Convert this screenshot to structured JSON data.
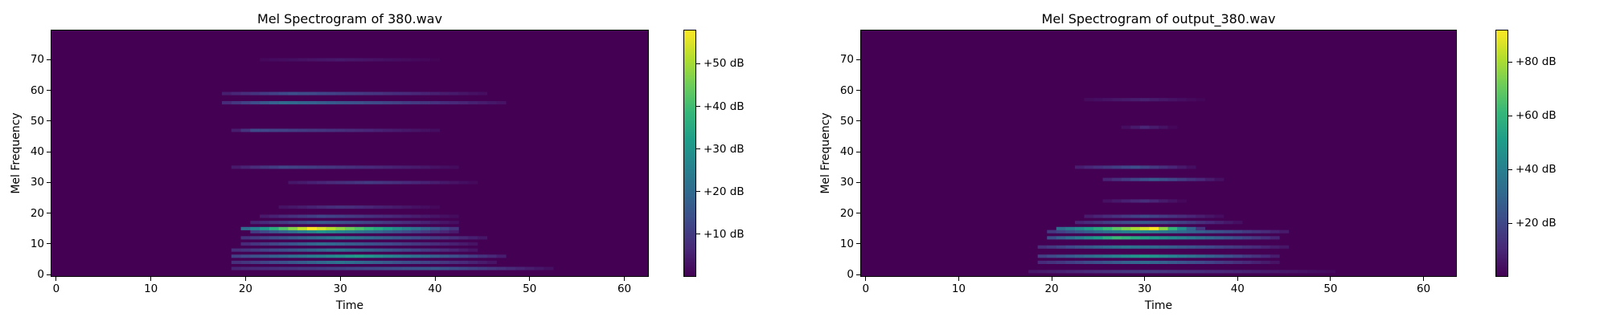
{
  "chart_data": [
    {
      "type": "heatmap",
      "title": "Mel Spectrogram of 380.wav",
      "xlabel": "Time",
      "ylabel": "Mel Frequency",
      "xlim": [
        -0.5,
        62.5
      ],
      "ylim": [
        -0.5,
        79.5
      ],
      "xticks": [
        0,
        10,
        20,
        30,
        40,
        50,
        60
      ],
      "yticks": [
        0,
        10,
        20,
        30,
        40,
        50,
        60,
        70
      ],
      "colormap": "viridis",
      "colorbar": {
        "range": [
          0,
          58
        ],
        "ticks": [
          10,
          20,
          30,
          40,
          50
        ],
        "tick_labels": [
          "+10 dB",
          "+20 dB",
          "+30 dB",
          "+40 dB",
          "+50 dB"
        ]
      },
      "bands": [
        {
          "mel": 2,
          "t_start": 19,
          "t_end": 52,
          "peak_t": 40,
          "level": 16
        },
        {
          "mel": 4,
          "t_start": 19,
          "t_end": 46,
          "peak_t": 30,
          "level": 22
        },
        {
          "mel": 6,
          "t_start": 19,
          "t_end": 47,
          "peak_t": 32,
          "level": 32
        },
        {
          "mel": 8,
          "t_start": 19,
          "t_end": 44,
          "peak_t": 30,
          "level": 22
        },
        {
          "mel": 10,
          "t_start": 20,
          "t_end": 44,
          "peak_t": 28,
          "level": 20
        },
        {
          "mel": 12,
          "t_start": 20,
          "t_end": 45,
          "peak_t": 30,
          "level": 24
        },
        {
          "mel": 14,
          "t_start": 21,
          "t_end": 42,
          "peak_t": 28,
          "level": 30
        },
        {
          "mel": 15,
          "t_start": 20,
          "t_end": 42,
          "peak_t": 27,
          "level": 58
        },
        {
          "mel": 17,
          "t_start": 21,
          "t_end": 42,
          "peak_t": 28,
          "level": 16
        },
        {
          "mel": 19,
          "t_start": 22,
          "t_end": 42,
          "peak_t": 28,
          "level": 12
        },
        {
          "mel": 22,
          "t_start": 24,
          "t_end": 40,
          "peak_t": 30,
          "level": 8
        },
        {
          "mel": 30,
          "t_start": 25,
          "t_end": 44,
          "peak_t": 33,
          "level": 10
        },
        {
          "mel": 35,
          "t_start": 19,
          "t_end": 42,
          "peak_t": 24,
          "level": 12
        },
        {
          "mel": 47,
          "t_start": 19,
          "t_end": 40,
          "peak_t": 21,
          "level": 13
        },
        {
          "mel": 56,
          "t_start": 18,
          "t_end": 47,
          "peak_t": 24,
          "level": 20
        },
        {
          "mel": 59,
          "t_start": 18,
          "t_end": 45,
          "peak_t": 25,
          "level": 14
        },
        {
          "mel": 70,
          "t_start": 22,
          "t_end": 40,
          "peak_t": 30,
          "level": 4
        }
      ]
    },
    {
      "type": "heatmap",
      "title": "Mel Spectrogram of output_380.wav",
      "xlabel": "Time",
      "ylabel": "Mel Frequency",
      "xlim": [
        -0.5,
        63.5
      ],
      "ylim": [
        -0.5,
        79.5
      ],
      "xticks": [
        0,
        10,
        20,
        30,
        40,
        50,
        60
      ],
      "yticks": [
        0,
        10,
        20,
        30,
        40,
        50,
        60,
        70
      ],
      "colormap": "viridis",
      "colorbar": {
        "range": [
          0,
          92
        ],
        "ticks": [
          20,
          40,
          60,
          80
        ],
        "tick_labels": [
          "+20 dB",
          "+40 dB",
          "+60 dB",
          "+80 dB"
        ]
      },
      "bands": [
        {
          "mel": 1,
          "t_start": 18,
          "t_end": 50,
          "peak_t": 30,
          "level": 16
        },
        {
          "mel": 4,
          "t_start": 19,
          "t_end": 44,
          "peak_t": 30,
          "level": 32
        },
        {
          "mel": 6,
          "t_start": 19,
          "t_end": 44,
          "peak_t": 30,
          "level": 50
        },
        {
          "mel": 9,
          "t_start": 19,
          "t_end": 45,
          "peak_t": 28,
          "level": 36
        },
        {
          "mel": 12,
          "t_start": 20,
          "t_end": 44,
          "peak_t": 27,
          "level": 62
        },
        {
          "mel": 14,
          "t_start": 20,
          "t_end": 45,
          "peak_t": 29,
          "level": 44
        },
        {
          "mel": 15,
          "t_start": 21,
          "t_end": 36,
          "peak_t": 31,
          "level": 92
        },
        {
          "mel": 17,
          "t_start": 23,
          "t_end": 40,
          "peak_t": 30,
          "level": 26
        },
        {
          "mel": 19,
          "t_start": 24,
          "t_end": 38,
          "peak_t": 30,
          "level": 20
        },
        {
          "mel": 24,
          "t_start": 26,
          "t_end": 34,
          "peak_t": 30,
          "level": 12
        },
        {
          "mel": 31,
          "t_start": 26,
          "t_end": 38,
          "peak_t": 31,
          "level": 26
        },
        {
          "mel": 35,
          "t_start": 23,
          "t_end": 35,
          "peak_t": 29,
          "level": 22
        },
        {
          "mel": 48,
          "t_start": 28,
          "t_end": 33,
          "peak_t": 30,
          "level": 10
        },
        {
          "mel": 57,
          "t_start": 24,
          "t_end": 36,
          "peak_t": 30,
          "level": 8
        }
      ]
    }
  ]
}
